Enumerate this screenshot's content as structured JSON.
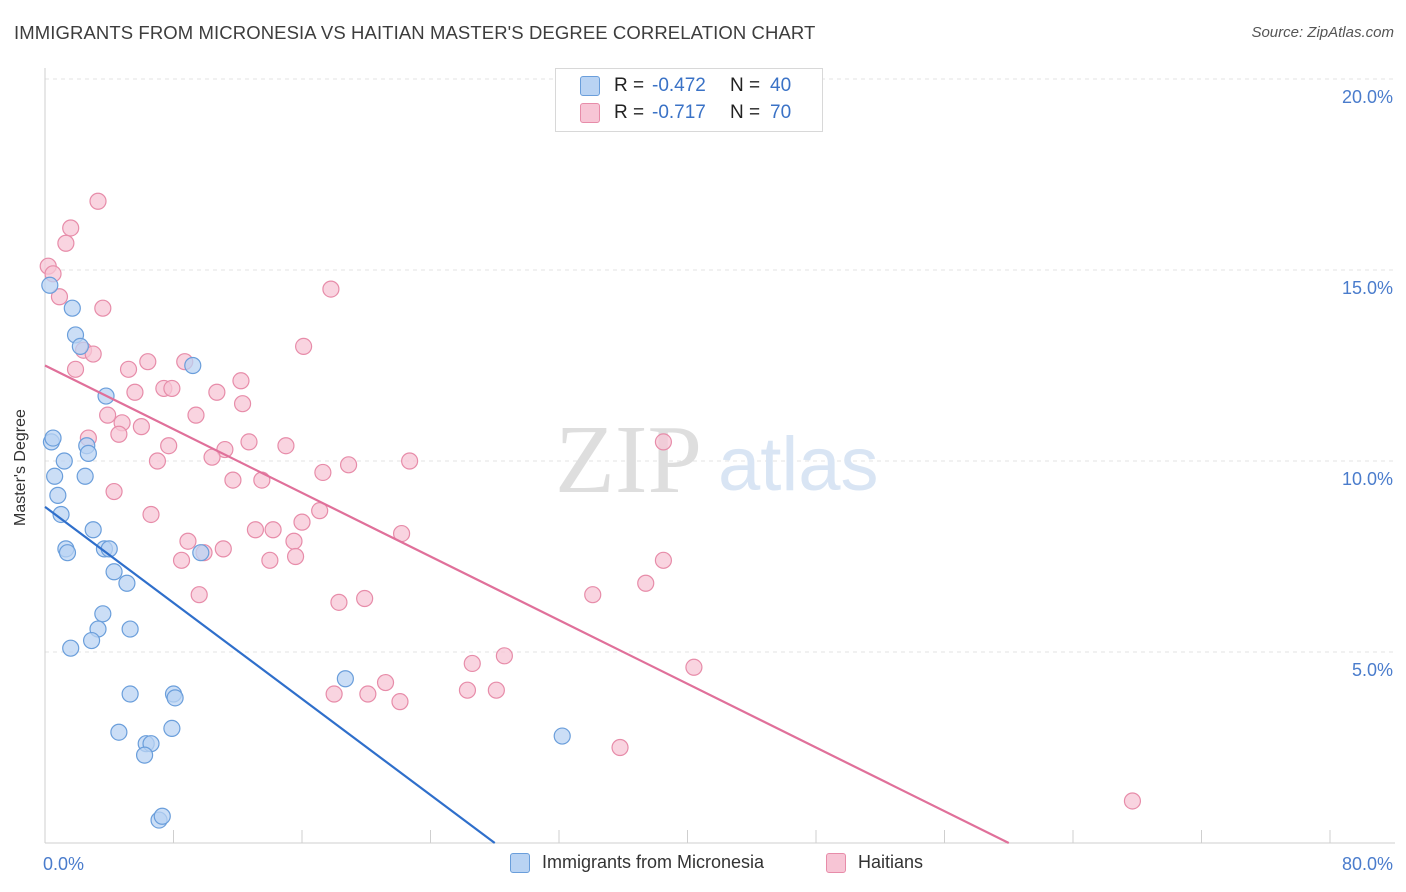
{
  "title": "IMMIGRANTS FROM MICRONESIA VS HAITIAN MASTER'S DEGREE CORRELATION CHART",
  "source": "Source: ZipAtlas.com",
  "watermark": {
    "zip": "ZIP",
    "atlas": "atlas"
  },
  "legend": {
    "rows": [
      {
        "r_label": "R =",
        "r_value": "-0.472",
        "n_label": "N =",
        "n_value": "40"
      },
      {
        "r_label": "R =",
        "r_value": "-0.717",
        "n_label": "N =",
        "n_value": "70"
      }
    ]
  },
  "bottom_legend": {
    "series_a": "Immigrants from Micronesia",
    "series_b": "Haitians"
  },
  "colors": {
    "blue_fill": "#b9d3f3",
    "blue_stroke": "#6a9edb",
    "blue_line": "#2f6fcb",
    "pink_fill": "#f7c5d5",
    "pink_stroke": "#e78ca9",
    "pink_line": "#e0709a",
    "tick_text": "#4a7ccc",
    "grid": "#e3e3e3"
  },
  "chart_data": {
    "type": "scatter",
    "title": "IMMIGRANTS FROM MICRONESIA VS HAITIAN MASTER'S DEGREE CORRELATION CHART",
    "xlabel": "",
    "ylabel": "Master's Degree",
    "xlim": [
      0,
      80
    ],
    "ylim": [
      0,
      20
    ],
    "x_tick_labels": [
      "0.0%",
      "80.0%"
    ],
    "y_ticks": [
      5,
      10,
      15,
      20
    ],
    "y_tick_labels": [
      "5.0%",
      "10.0%",
      "15.0%",
      "20.0%"
    ],
    "series": [
      {
        "name": "Immigrants from Micronesia",
        "r": -0.472,
        "n": 40,
        "trend": {
          "x": [
            0,
            28
          ],
          "y": [
            8.8,
            0
          ]
        },
        "points": [
          [
            0.3,
            14.6
          ],
          [
            1.7,
            14.0
          ],
          [
            1.9,
            13.3
          ],
          [
            2.2,
            13.0
          ],
          [
            9.2,
            12.5
          ],
          [
            3.8,
            11.7
          ],
          [
            0.4,
            10.5
          ],
          [
            0.5,
            10.6
          ],
          [
            2.6,
            10.4
          ],
          [
            2.7,
            10.2
          ],
          [
            1.2,
            10.0
          ],
          [
            0.6,
            9.6
          ],
          [
            2.5,
            9.6
          ],
          [
            0.8,
            9.1
          ],
          [
            1.0,
            8.6
          ],
          [
            3.0,
            8.2
          ],
          [
            1.3,
            7.7
          ],
          [
            1.4,
            7.6
          ],
          [
            3.7,
            7.7
          ],
          [
            4.0,
            7.7
          ],
          [
            9.7,
            7.6
          ],
          [
            4.3,
            7.1
          ],
          [
            5.1,
            6.8
          ],
          [
            3.6,
            6.0
          ],
          [
            3.3,
            5.6
          ],
          [
            5.3,
            5.6
          ],
          [
            2.9,
            5.3
          ],
          [
            1.6,
            5.1
          ],
          [
            18.7,
            4.3
          ],
          [
            5.3,
            3.9
          ],
          [
            8.0,
            3.9
          ],
          [
            8.1,
            3.8
          ],
          [
            4.6,
            2.9
          ],
          [
            7.9,
            3.0
          ],
          [
            6.3,
            2.6
          ],
          [
            6.6,
            2.6
          ],
          [
            6.2,
            2.3
          ],
          [
            32.2,
            2.8
          ],
          [
            7.1,
            0.6
          ],
          [
            7.3,
            0.7
          ]
        ]
      },
      {
        "name": "Haitians",
        "r": -0.717,
        "n": 70,
        "trend": {
          "x": [
            0,
            60
          ],
          "y": [
            12.5,
            0
          ]
        },
        "points": [
          [
            3.3,
            16.8
          ],
          [
            1.6,
            16.1
          ],
          [
            1.3,
            15.7
          ],
          [
            0.2,
            15.1
          ],
          [
            0.5,
            14.9
          ],
          [
            0.9,
            14.3
          ],
          [
            3.6,
            14.0
          ],
          [
            17.8,
            14.5
          ],
          [
            16.1,
            13.0
          ],
          [
            2.4,
            12.9
          ],
          [
            3.0,
            12.8
          ],
          [
            1.9,
            12.4
          ],
          [
            6.4,
            12.6
          ],
          [
            8.7,
            12.6
          ],
          [
            5.2,
            12.4
          ],
          [
            12.2,
            12.1
          ],
          [
            7.4,
            11.9
          ],
          [
            7.9,
            11.9
          ],
          [
            10.7,
            11.8
          ],
          [
            5.6,
            11.8
          ],
          [
            12.3,
            11.5
          ],
          [
            3.9,
            11.2
          ],
          [
            9.4,
            11.2
          ],
          [
            4.8,
            11.0
          ],
          [
            6.0,
            10.9
          ],
          [
            4.6,
            10.7
          ],
          [
            2.7,
            10.6
          ],
          [
            12.7,
            10.5
          ],
          [
            15.0,
            10.4
          ],
          [
            7.7,
            10.4
          ],
          [
            11.2,
            10.3
          ],
          [
            10.4,
            10.1
          ],
          [
            7.0,
            10.0
          ],
          [
            18.9,
            9.9
          ],
          [
            22.7,
            10.0
          ],
          [
            17.3,
            9.7
          ],
          [
            11.7,
            9.5
          ],
          [
            13.5,
            9.5
          ],
          [
            4.3,
            9.2
          ],
          [
            6.6,
            8.6
          ],
          [
            17.1,
            8.7
          ],
          [
            16.0,
            8.4
          ],
          [
            13.1,
            8.2
          ],
          [
            14.2,
            8.2
          ],
          [
            22.2,
            8.1
          ],
          [
            15.5,
            7.9
          ],
          [
            8.9,
            7.9
          ],
          [
            11.1,
            7.7
          ],
          [
            9.9,
            7.6
          ],
          [
            8.5,
            7.4
          ],
          [
            14.0,
            7.4
          ],
          [
            15.6,
            7.5
          ],
          [
            38.5,
            7.4
          ],
          [
            37.4,
            6.8
          ],
          [
            9.6,
            6.5
          ],
          [
            18.3,
            6.3
          ],
          [
            19.9,
            6.4
          ],
          [
            34.1,
            6.5
          ],
          [
            38.5,
            10.5
          ],
          [
            28.6,
            4.9
          ],
          [
            26.6,
            4.7
          ],
          [
            40.4,
            4.6
          ],
          [
            21.2,
            4.2
          ],
          [
            26.3,
            4.0
          ],
          [
            28.1,
            4.0
          ],
          [
            18.0,
            3.9
          ],
          [
            20.1,
            3.9
          ],
          [
            22.1,
            3.7
          ],
          [
            35.8,
            2.5
          ],
          [
            67.7,
            1.1
          ]
        ]
      }
    ]
  }
}
